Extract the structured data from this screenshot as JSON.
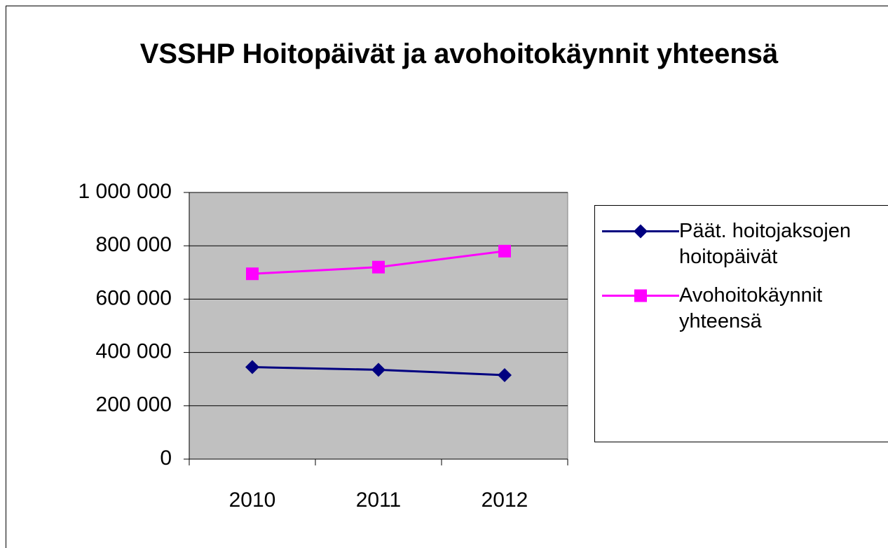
{
  "chart_data": {
    "type": "line",
    "title": "VSSHP Hoitopäivät ja avohoitokäynnit yhteensä",
    "categories": [
      "2010",
      "2011",
      "2012"
    ],
    "series": [
      {
        "name": "Päät. hoitojaksojen hoitopäivät",
        "color": "#000080",
        "marker": "diamond",
        "values": [
          345000,
          335000,
          315000
        ]
      },
      {
        "name": "Avohoitokäynnit yhteensä",
        "color": "#ff00ff",
        "marker": "square",
        "values": [
          695000,
          720000,
          780000
        ]
      }
    ],
    "ylim": [
      0,
      1000000
    ],
    "yticks": [
      0,
      {
        "value": 200000,
        "label": "200 000"
      },
      {
        "value": 400000,
        "label": "400 000"
      },
      {
        "value": 600000,
        "label": "600 000"
      },
      {
        "value": 800000,
        "label": "800 000"
      },
      {
        "value": 1000000,
        "label": "1 000 000"
      }
    ],
    "grid": true,
    "legend": "right"
  }
}
